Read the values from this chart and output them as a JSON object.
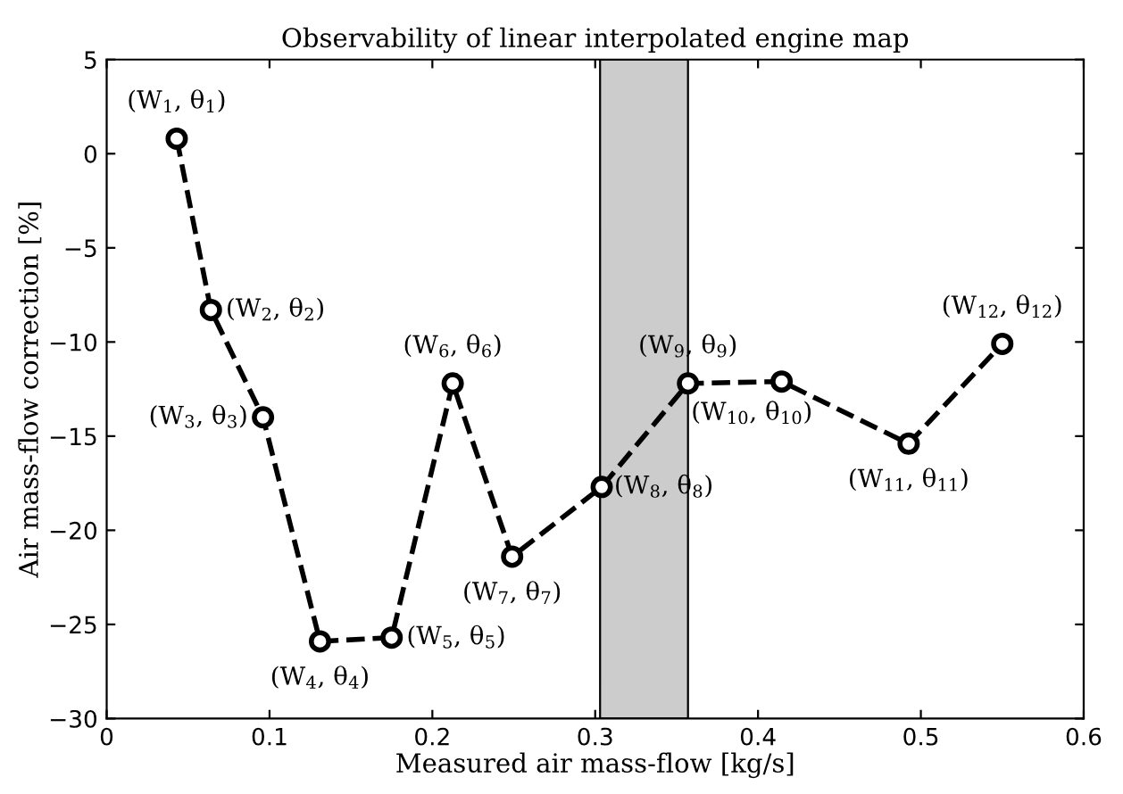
{
  "chart_data": {
    "type": "line",
    "title": "Observability of linear interpolated engine map",
    "xlabel": "Measured air mass-flow [kg/s]",
    "ylabel": "Air mass-flow correction [%]",
    "x": [
      0.043,
      0.064,
      0.096,
      0.131,
      0.175,
      0.2125,
      0.249,
      0.304,
      0.357,
      0.4145,
      0.4925,
      0.55
    ],
    "series": [
      {
        "color": "#000000",
        "values": [
          0.8,
          -8.3,
          -14.0,
          -25.9,
          -25.7,
          -12.2,
          -21.4,
          -17.7,
          -12.2,
          -12.1,
          -15.4,
          -10.1
        ]
      }
    ],
    "marker": "circle",
    "line_style": "dashed",
    "grid": false,
    "xlim": [
      0,
      0.6
    ],
    "xticks": [
      0,
      0.1,
      0.2,
      0.3,
      0.4,
      0.5,
      0.6
    ],
    "ylim": [
      -30,
      5
    ],
    "yticks": [
      -30,
      -25,
      -20,
      -15,
      -10,
      -5,
      0,
      5
    ],
    "bands": [
      {
        "axis": "x",
        "from": 0.303,
        "to": 0.357,
        "color": "#cccccc"
      }
    ],
    "annotations": [
      {
        "text": "(W$_{1}$, θ$_{1}$)",
        "x": 0.043,
        "y": 0.8
      },
      {
        "text": "(W$_{2}$, θ$_{2}$)",
        "x": 0.064,
        "y": -8.3
      },
      {
        "text": "(W$_{3}$, θ$_{3}$)",
        "x": 0.096,
        "y": -14.0
      },
      {
        "text": "(W$_{4}$, θ$_{4}$)",
        "x": 0.131,
        "y": -25.9
      },
      {
        "text": "(W$_{5}$, θ$_{5}$)",
        "x": 0.175,
        "y": -25.7
      },
      {
        "text": "(W$_{6}$, θ$_{6}$)",
        "x": 0.2125,
        "y": -12.2
      },
      {
        "text": "(W$_{7}$, θ$_{7}$)",
        "x": 0.249,
        "y": -21.4
      },
      {
        "text": "(W$_{8}$, θ$_{8}$)",
        "x": 0.304,
        "y": -17.7
      },
      {
        "text": "(W$_{9}$, θ$_{9}$)",
        "x": 0.357,
        "y": -12.2
      },
      {
        "text": "(W$_{10}$, θ$_{10}$)",
        "x": 0.4145,
        "y": -12.1
      },
      {
        "text": "(W$_{11}$, θ$_{11}$)",
        "x": 0.4925,
        "y": -15.4
      },
      {
        "text": "(W$_{12}$, θ$_{12}$)",
        "x": 0.55,
        "y": -10.1
      }
    ]
  }
}
